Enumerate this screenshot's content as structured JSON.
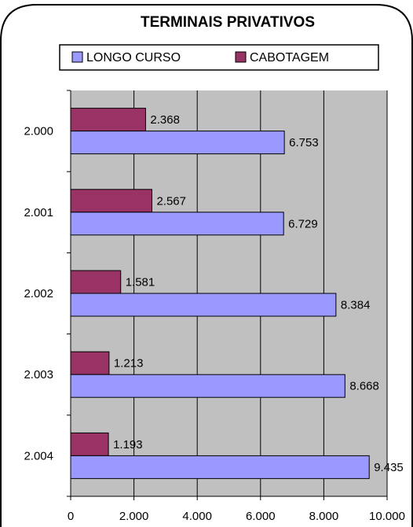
{
  "chart_data": {
    "type": "bar",
    "orientation": "horizontal",
    "title": "TERMINAIS PRIVATIVOS",
    "categories": [
      "2.000",
      "2.001",
      "2.002",
      "2.003",
      "2.004"
    ],
    "series": [
      {
        "name": "LONGO CURSO",
        "color": "#9999ff",
        "values": [
          6753,
          6729,
          8384,
          8668,
          9435
        ],
        "labels": [
          "6.753",
          "6.729",
          "8.384",
          "8.668",
          "9.435"
        ]
      },
      {
        "name": "CABOTAGEM",
        "color": "#993366",
        "values": [
          2368,
          2567,
          1581,
          1213,
          1193
        ],
        "labels": [
          "2.368",
          "2.567",
          "1.581",
          "1.213",
          "1.193"
        ]
      }
    ],
    "xlim": [
      0,
      10000
    ],
    "x_ticks": [
      0,
      2000,
      4000,
      6000,
      8000,
      10000
    ],
    "x_tick_labels": [
      "0",
      "2.000",
      "4.000",
      "6.000",
      "8.000",
      "10.000"
    ],
    "grid": "vertical",
    "plot_background": "#c0c0c0",
    "legend_position": "top"
  }
}
